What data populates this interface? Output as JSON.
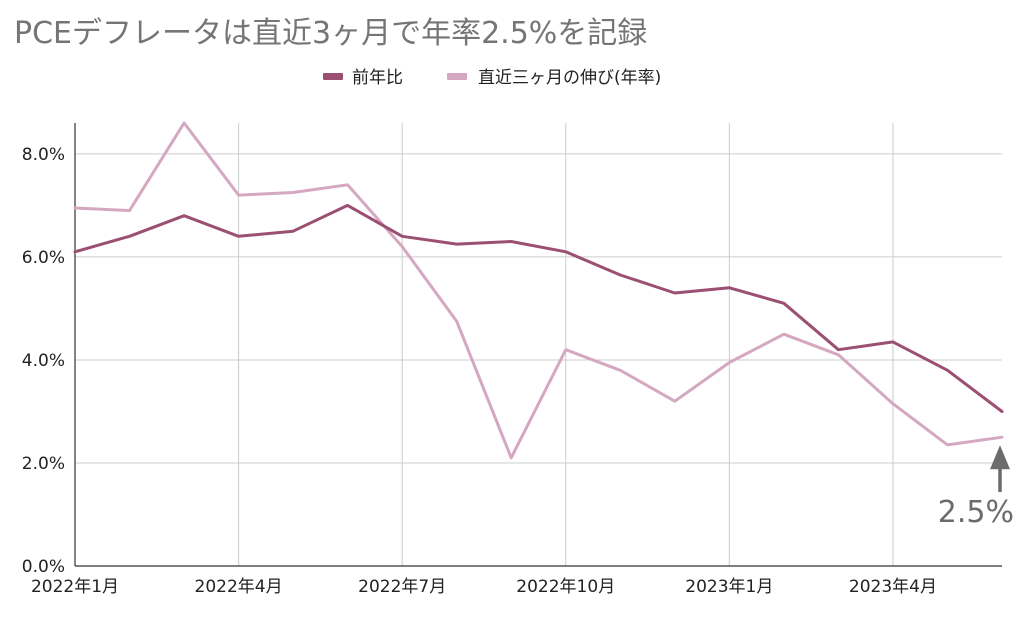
{
  "title": "PCEデフレータは直近3ヶ月で年率2.5%を記録",
  "chart_data": {
    "type": "line",
    "title": "PCEデフレータは直近3ヶ月で年率2.5%を記録",
    "x": [
      "2022年1月",
      "2022年2月",
      "2022年3月",
      "2022年4月",
      "2022年5月",
      "2022年6月",
      "2022年7月",
      "2022年8月",
      "2022年9月",
      "2022年10月",
      "2022年11月",
      "2022年12月",
      "2023年1月",
      "2023年2月",
      "2023年3月",
      "2023年4月",
      "2023年5月",
      "2023年6月"
    ],
    "x_tick_labels": [
      "2022年1月",
      "2022年4月",
      "2022年7月",
      "2022年10月",
      "2023年1月",
      "2023年4月"
    ],
    "series": [
      {
        "name": "前年比",
        "color": "#9b4f72",
        "values": [
          6.1,
          6.4,
          6.8,
          6.4,
          6.5,
          7.0,
          6.4,
          6.25,
          6.3,
          6.1,
          5.65,
          5.3,
          5.4,
          5.1,
          4.2,
          4.35,
          3.8,
          3.0
        ]
      },
      {
        "name": "直近三ヶ月の伸び(年率)",
        "color": "#d4a8c1",
        "values": [
          6.95,
          6.9,
          8.6,
          7.2,
          7.25,
          7.4,
          6.2,
          4.75,
          2.1,
          4.2,
          3.8,
          3.2,
          3.95,
          4.5,
          4.1,
          3.15,
          2.35,
          2.5
        ]
      }
    ],
    "ylim": [
      0,
      8.6
    ],
    "y_ticks": [
      "0.0%",
      "2.0%",
      "4.0%",
      "6.0%",
      "8.0%"
    ],
    "xlabel": "",
    "ylabel": "",
    "grid": true,
    "legend_position": "top",
    "annotation": {
      "text": "2.5%",
      "color": "#6b6b6b"
    }
  }
}
